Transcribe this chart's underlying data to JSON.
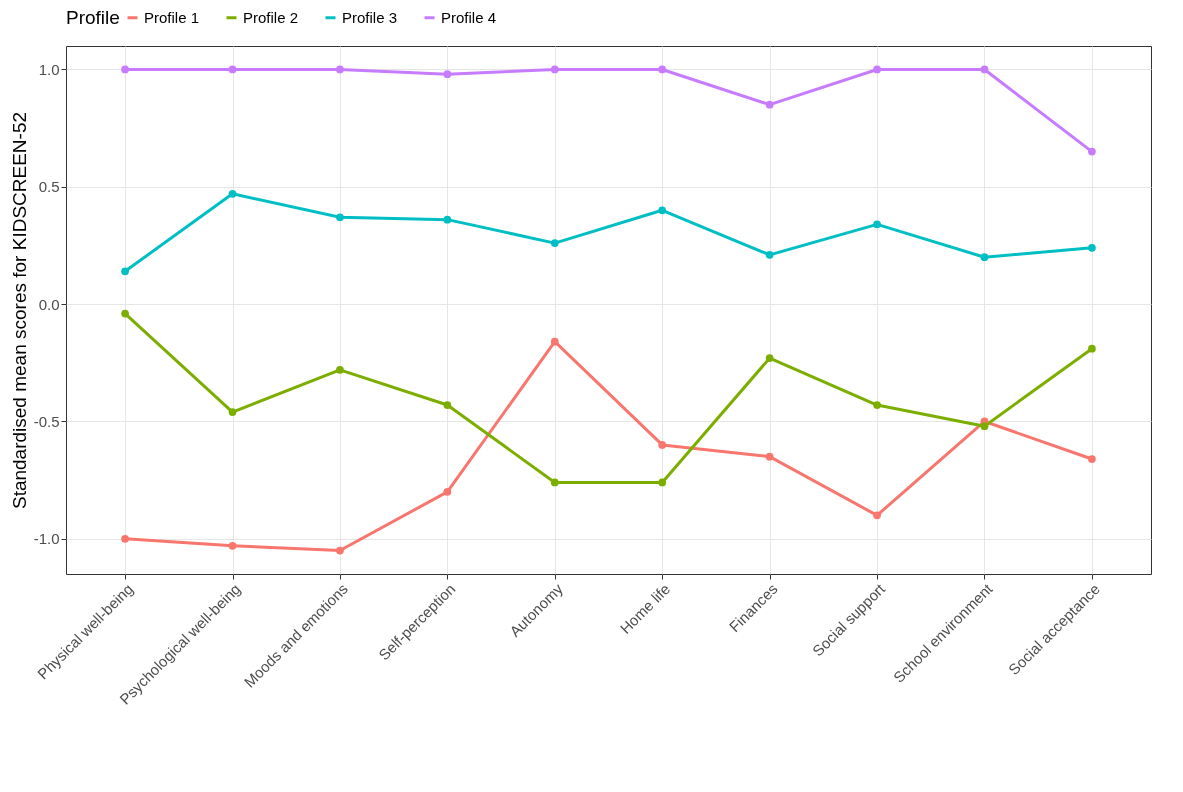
{
  "chart_data": {
    "type": "line",
    "ylabel": "Standardised mean scores for KIDSCREEN-52",
    "legend_title": "Profile",
    "legend": "top",
    "grid": true,
    "marker": "circle",
    "line_style": "solid",
    "categories": [
      "Physical well-being",
      "Psychological well-being",
      "Moods and emotions",
      "Self-perception",
      "Autonomy",
      "Home life",
      "Finances",
      "Social support",
      "School environment",
      "Social acceptance"
    ],
    "ylim": [
      -1.15,
      1.1
    ],
    "yticks": [
      {
        "value": -1,
        "label": "-1.0"
      },
      {
        "value": -0.5,
        "label": "-0.5"
      },
      {
        "value": 0,
        "label": "0.0"
      },
      {
        "value": 0.5,
        "label": "0.5"
      },
      {
        "value": 1,
        "label": "1.0"
      }
    ],
    "series": [
      {
        "name": "Profile 1",
        "color": "#f8766d",
        "values": [
          -1.0,
          -1.03,
          -1.05,
          -0.8,
          -0.16,
          -0.6,
          -0.65,
          -0.9,
          -0.5,
          -0.66
        ]
      },
      {
        "name": "Profile 2",
        "color": "#7cae00",
        "values": [
          -0.04,
          -0.46,
          -0.28,
          -0.43,
          -0.76,
          -0.76,
          -0.23,
          -0.43,
          -0.52,
          -0.19
        ]
      },
      {
        "name": "Profile 3",
        "color": "#00bfc4",
        "values": [
          0.14,
          0.47,
          0.37,
          0.36,
          0.26,
          0.4,
          0.21,
          0.34,
          0.2,
          0.24
        ]
      },
      {
        "name": "Profile 4",
        "color": "#c77cff",
        "values": [
          1.0,
          1.0,
          1.0,
          0.98,
          1.0,
          1.0,
          0.85,
          1.0,
          1.0,
          0.65
        ]
      }
    ]
  }
}
